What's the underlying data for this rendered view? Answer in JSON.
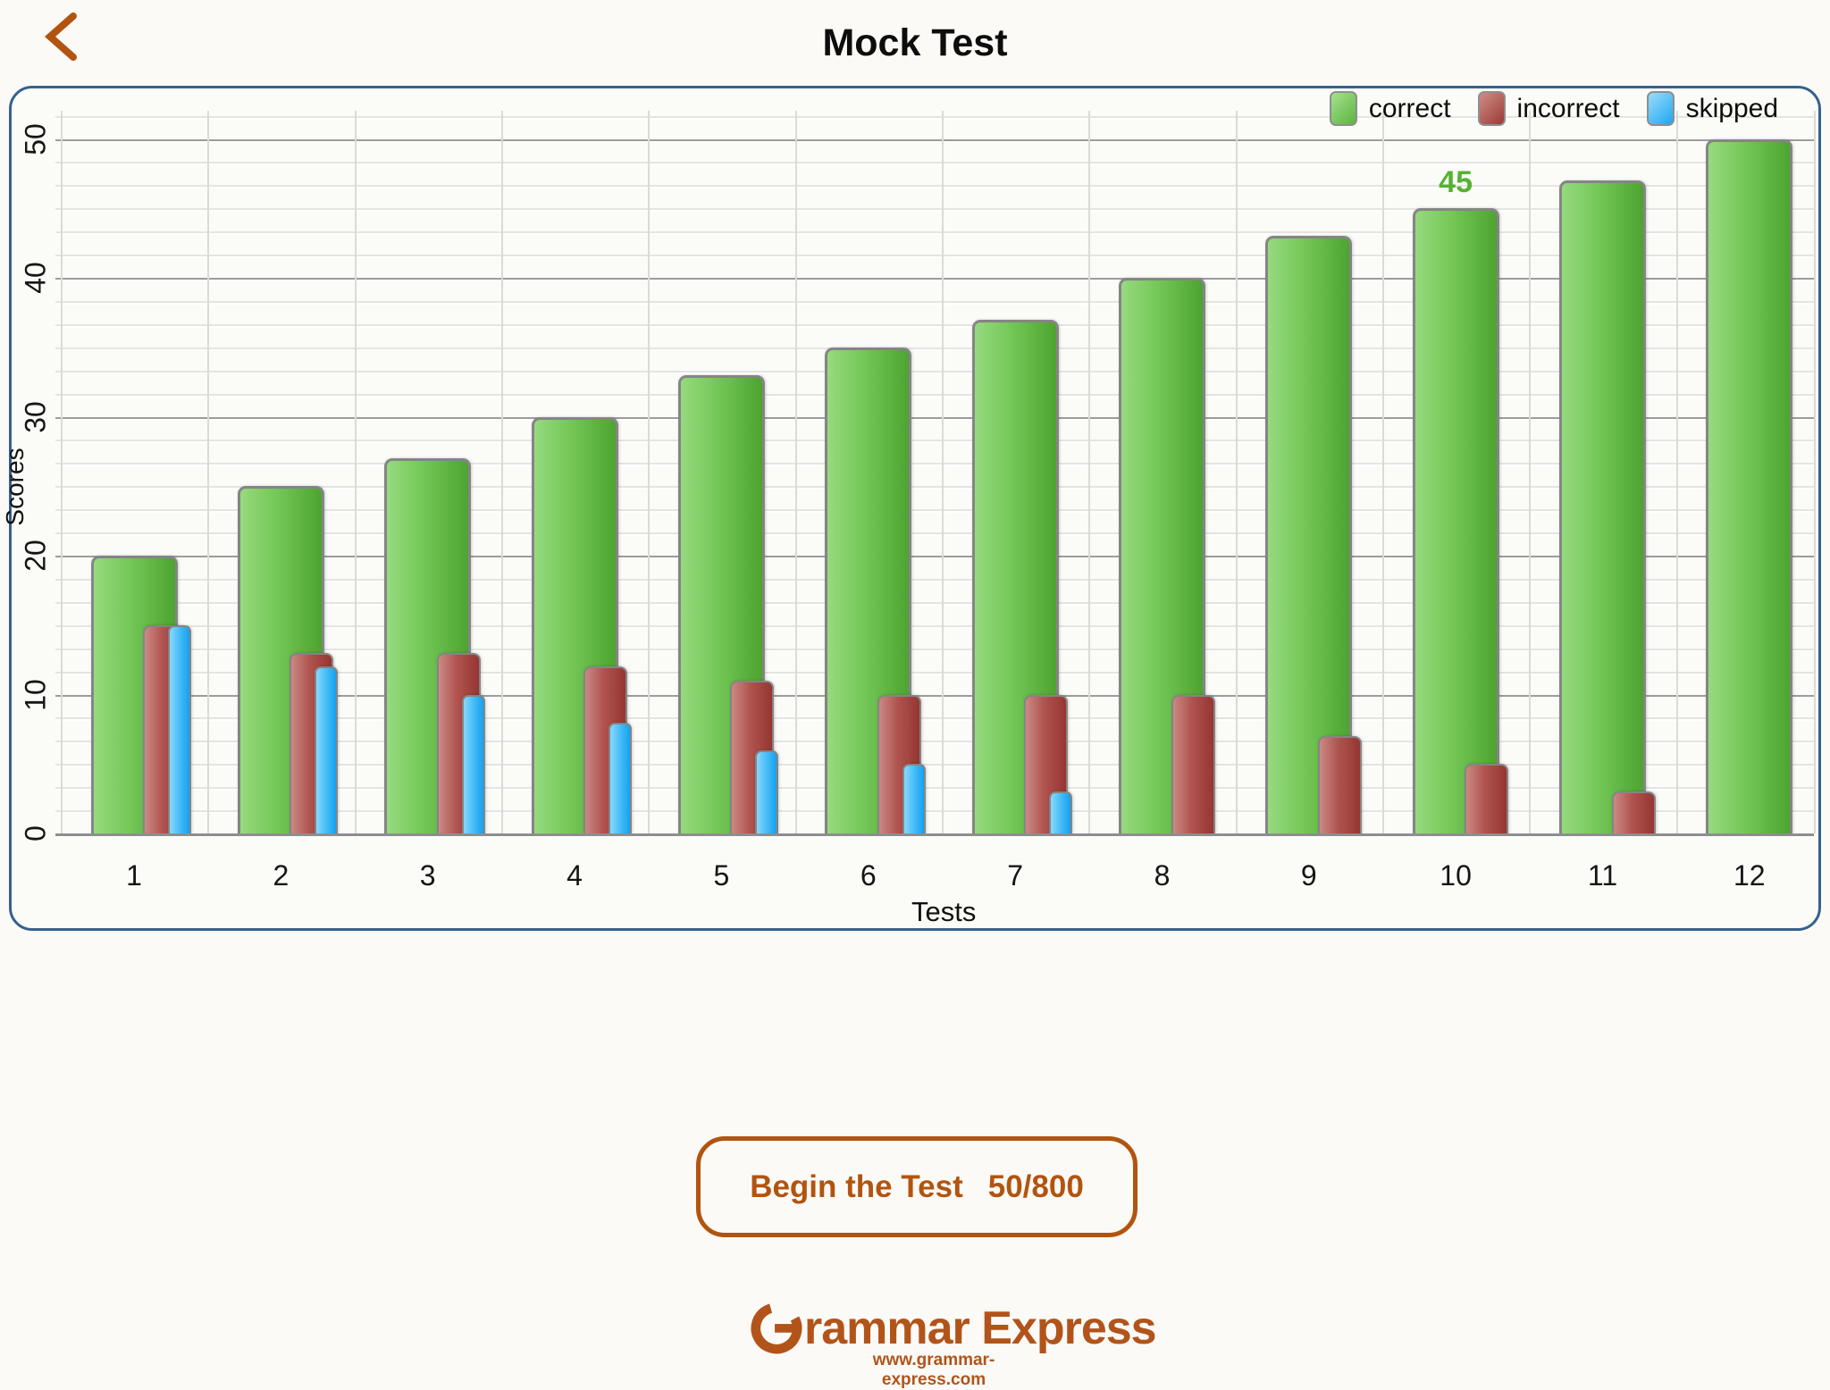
{
  "header": {
    "title": "Mock Test",
    "back_icon": "chevron-left"
  },
  "chart_data": {
    "type": "bar",
    "title": "",
    "xlabel": "Tests",
    "ylabel": "Scores",
    "ylim": [
      0,
      50
    ],
    "y_ticks": [
      0,
      10,
      20,
      30,
      40,
      50
    ],
    "grid": true,
    "legend_position": "top-right",
    "categories": [
      "1",
      "2",
      "3",
      "4",
      "5",
      "6",
      "7",
      "8",
      "9",
      "10",
      "11",
      "12"
    ],
    "series": [
      {
        "name": "correct",
        "color": "#6cc24d",
        "values": [
          20,
          25,
          27,
          30,
          33,
          35,
          37,
          40,
          43,
          45,
          47,
          50
        ]
      },
      {
        "name": "incorrect",
        "color": "#a74542",
        "values": [
          15,
          13,
          13,
          12,
          11,
          10,
          10,
          10,
          7,
          5,
          3,
          0
        ]
      },
      {
        "name": "skipped",
        "color": "#2badf2",
        "values": [
          15,
          12,
          10,
          8,
          6,
          5,
          3,
          0,
          0,
          0,
          0,
          0
        ]
      }
    ],
    "annotations": [
      {
        "text": "45",
        "category": "10",
        "series": "correct"
      }
    ]
  },
  "legend": {
    "items": [
      {
        "label": "correct"
      },
      {
        "label": "incorrect"
      },
      {
        "label": "skipped"
      }
    ]
  },
  "button": {
    "label": "Begin the Test",
    "score": "50/800"
  },
  "footer": {
    "brand_initial": "G",
    "brand_rest": "rammar Express",
    "url": "www.grammar-express.com"
  },
  "colors": {
    "accent_orange": "#b2540f",
    "panel_border": "#35618c",
    "annotation_green": "#55b231",
    "grid_major": "#9c9c9c",
    "grid_minor": "#e4e4e1",
    "correct_light": "#96da7e",
    "correct_dark": "#4da430",
    "incorrect_light": "#cb8983",
    "incorrect_dark": "#963531",
    "skipped_light": "#8ad8fc",
    "skipped_dark": "#15a1ef"
  }
}
